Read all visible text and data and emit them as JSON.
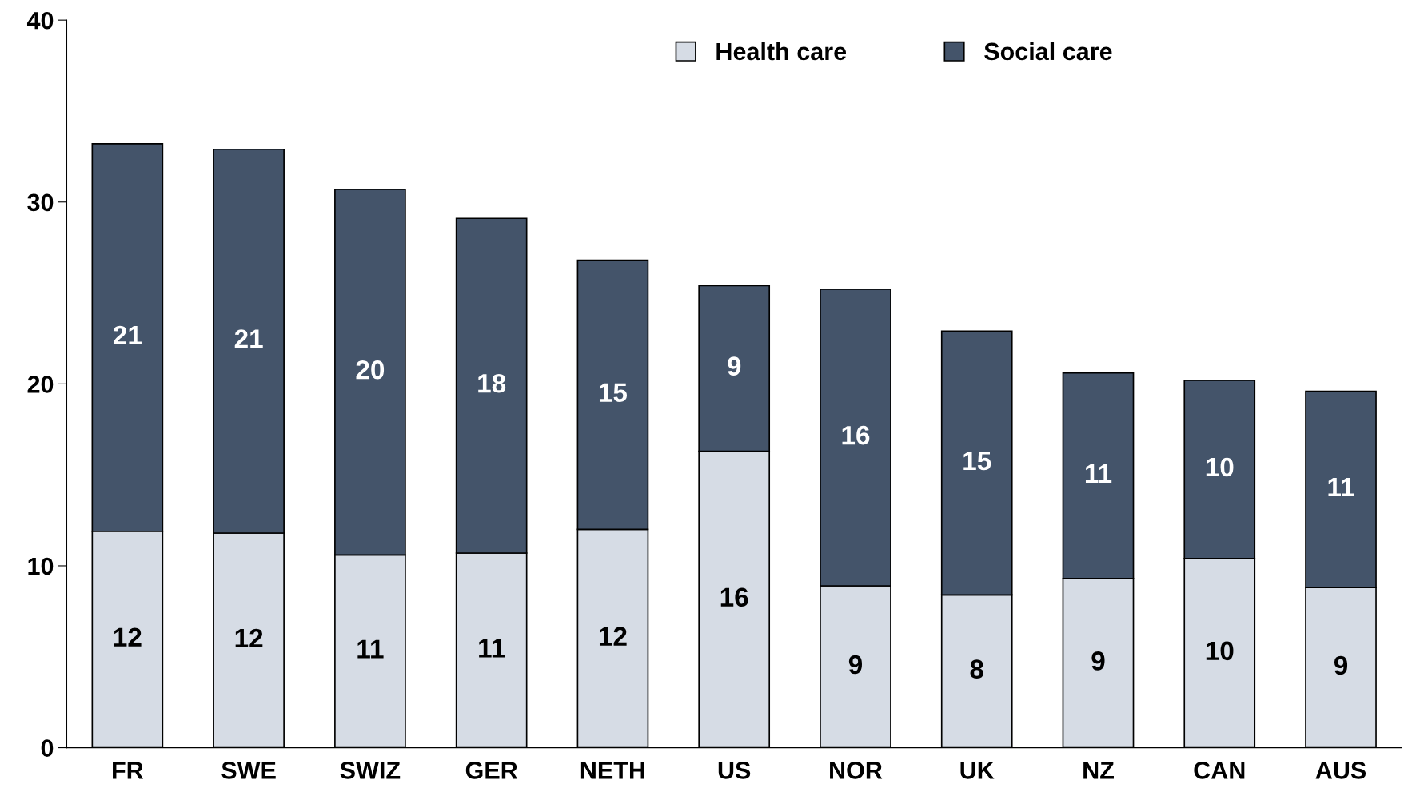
{
  "chart_data": {
    "type": "bar",
    "stacked": true,
    "categories": [
      "FR",
      "SWE",
      "SWIZ",
      "GER",
      "NETH",
      "US",
      "NOR",
      "UK",
      "NZ",
      "CAN",
      "AUS"
    ],
    "series": [
      {
        "name": "Health care",
        "color": "#d6dce5",
        "values": [
          11.9,
          11.8,
          10.6,
          10.7,
          12.0,
          16.3,
          8.9,
          8.4,
          9.3,
          10.4,
          8.8
        ],
        "value_labels": [
          "12",
          "12",
          "11",
          "11",
          "12",
          "16",
          "9",
          "8",
          "9",
          "10",
          "9"
        ]
      },
      {
        "name": "Social care",
        "color": "#44546a",
        "values": [
          21.3,
          21.1,
          20.1,
          18.4,
          14.8,
          9.1,
          16.3,
          14.5,
          11.3,
          9.8,
          10.8
        ],
        "value_labels": [
          "21",
          "21",
          "20",
          "18",
          "15",
          "9",
          "16",
          "15",
          "11",
          "10",
          "11"
        ]
      }
    ],
    "ylim": [
      0,
      40
    ],
    "yticks": [
      0,
      10,
      20,
      30,
      40
    ],
    "grid": false,
    "legend": "top"
  }
}
